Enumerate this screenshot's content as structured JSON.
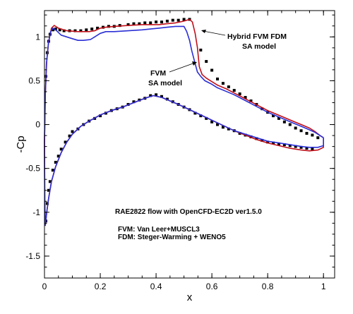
{
  "chart_data": {
    "type": "line",
    "xlabel": "x",
    "ylabel": "-Cp",
    "xlim": [
      0,
      1.04
    ],
    "ylim": [
      -1.75,
      1.3
    ],
    "x_ticks": [
      0,
      0.2,
      0.4,
      0.6,
      0.8,
      1
    ],
    "x_tick_labels": [
      "0",
      "0.2",
      "0.4",
      "0.6",
      "0.8",
      "1"
    ],
    "y_ticks": [
      -1.5,
      -1,
      -0.5,
      0,
      0.5,
      1
    ],
    "y_tick_labels": [
      "-1.5",
      "-1",
      "-0.5",
      "0",
      "0.5",
      "1"
    ],
    "grid": false,
    "legend": "none",
    "annotations": [
      {
        "id": "hybrid",
        "lines": [
          "Hybrid FVM FDM",
          "SA model"
        ]
      },
      {
        "id": "fvm",
        "lines": [
          "FVM",
          "SA model"
        ]
      },
      {
        "id": "info",
        "lines": [
          "RAE2822 flow with OpenCFD-EC2D ver1.5.0",
          "",
          "FVM: Van Leer+MUSCL3",
          "FDM: Steger-Warming + WENO5"
        ]
      }
    ],
    "series": [
      {
        "id": "experiment",
        "style": "markers",
        "color": "#000000",
        "upper": [
          [
            0.005,
            0.55
          ],
          [
            0.01,
            0.82
          ],
          [
            0.015,
            0.95
          ],
          [
            0.02,
            1.03
          ],
          [
            0.03,
            1.08
          ],
          [
            0.04,
            1.09
          ],
          [
            0.055,
            1.08
          ],
          [
            0.07,
            1.07
          ],
          [
            0.09,
            1.07
          ],
          [
            0.11,
            1.07
          ],
          [
            0.13,
            1.07
          ],
          [
            0.15,
            1.08
          ],
          [
            0.17,
            1.09
          ],
          [
            0.19,
            1.1
          ],
          [
            0.21,
            1.11
          ],
          [
            0.23,
            1.12
          ],
          [
            0.25,
            1.12
          ],
          [
            0.27,
            1.13
          ],
          [
            0.3,
            1.14
          ],
          [
            0.32,
            1.15
          ],
          [
            0.34,
            1.15
          ],
          [
            0.36,
            1.16
          ],
          [
            0.38,
            1.16
          ],
          [
            0.4,
            1.17
          ],
          [
            0.42,
            1.17
          ],
          [
            0.44,
            1.18
          ],
          [
            0.46,
            1.19
          ],
          [
            0.48,
            1.19
          ],
          [
            0.5,
            1.2
          ],
          [
            0.52,
            1.2
          ],
          [
            0.56,
            0.85
          ],
          [
            0.58,
            0.72
          ],
          [
            0.6,
            0.62
          ],
          [
            0.62,
            0.52
          ],
          [
            0.64,
            0.47
          ],
          [
            0.66,
            0.43
          ],
          [
            0.68,
            0.39
          ],
          [
            0.7,
            0.35
          ],
          [
            0.72,
            0.31
          ],
          [
            0.74,
            0.27
          ],
          [
            0.76,
            0.23
          ],
          [
            0.78,
            0.18
          ],
          [
            0.8,
            0.14
          ],
          [
            0.82,
            0.1
          ],
          [
            0.84,
            0.07
          ],
          [
            0.86,
            0.03
          ],
          [
            0.88,
            0.0
          ],
          [
            0.9,
            -0.04
          ],
          [
            0.92,
            -0.07
          ],
          [
            0.94,
            -0.1
          ],
          [
            0.96,
            -0.12
          ],
          [
            0.98,
            -0.15
          ]
        ],
        "lower": [
          [
            0.005,
            -1.1
          ],
          [
            0.01,
            -0.9
          ],
          [
            0.015,
            -0.75
          ],
          [
            0.02,
            -0.65
          ],
          [
            0.03,
            -0.52
          ],
          [
            0.04,
            -0.43
          ],
          [
            0.05,
            -0.36
          ],
          [
            0.06,
            -0.28
          ],
          [
            0.075,
            -0.2
          ],
          [
            0.09,
            -0.13
          ],
          [
            0.1,
            -0.08
          ],
          [
            0.12,
            -0.05
          ],
          [
            0.14,
            0.0
          ],
          [
            0.16,
            0.04
          ],
          [
            0.18,
            0.07
          ],
          [
            0.2,
            0.1
          ],
          [
            0.22,
            0.13
          ],
          [
            0.24,
            0.16
          ],
          [
            0.26,
            0.18
          ],
          [
            0.28,
            0.2
          ],
          [
            0.3,
            0.23
          ],
          [
            0.32,
            0.26
          ],
          [
            0.34,
            0.28
          ],
          [
            0.36,
            0.3
          ],
          [
            0.38,
            0.33
          ],
          [
            0.4,
            0.34
          ],
          [
            0.42,
            0.32
          ],
          [
            0.44,
            0.29
          ],
          [
            0.46,
            0.26
          ],
          [
            0.48,
            0.23
          ],
          [
            0.5,
            0.2
          ],
          [
            0.52,
            0.17
          ],
          [
            0.54,
            0.13
          ],
          [
            0.56,
            0.1
          ],
          [
            0.58,
            0.07
          ],
          [
            0.6,
            0.03
          ],
          [
            0.62,
            0.0
          ],
          [
            0.64,
            -0.03
          ],
          [
            0.66,
            -0.05
          ],
          [
            0.68,
            -0.07
          ],
          [
            0.7,
            -0.1
          ],
          [
            0.72,
            -0.12
          ],
          [
            0.74,
            -0.14
          ],
          [
            0.76,
            -0.16
          ],
          [
            0.78,
            -0.18
          ],
          [
            0.8,
            -0.2
          ],
          [
            0.82,
            -0.21
          ],
          [
            0.84,
            -0.22
          ],
          [
            0.86,
            -0.23
          ],
          [
            0.88,
            -0.24
          ],
          [
            0.9,
            -0.25
          ],
          [
            0.92,
            -0.26
          ],
          [
            0.94,
            -0.27
          ],
          [
            0.96,
            -0.28
          ]
        ]
      },
      {
        "id": "hybrid-fvm-fdm",
        "style": "line",
        "color": "#c0101a",
        "points": [
          [
            1.0,
            -0.15
          ],
          [
            0.99,
            -0.13
          ],
          [
            0.97,
            -0.08
          ],
          [
            0.95,
            -0.04
          ],
          [
            0.92,
            0.0
          ],
          [
            0.89,
            0.04
          ],
          [
            0.86,
            0.08
          ],
          [
            0.83,
            0.12
          ],
          [
            0.8,
            0.16
          ],
          [
            0.77,
            0.21
          ],
          [
            0.74,
            0.26
          ],
          [
            0.71,
            0.31
          ],
          [
            0.68,
            0.36
          ],
          [
            0.65,
            0.41
          ],
          [
            0.62,
            0.45
          ],
          [
            0.6,
            0.49
          ],
          [
            0.58,
            0.53
          ],
          [
            0.565,
            0.57
          ],
          [
            0.555,
            0.66
          ],
          [
            0.548,
            0.88
          ],
          [
            0.54,
            1.04
          ],
          [
            0.53,
            1.17
          ],
          [
            0.52,
            1.2
          ],
          [
            0.5,
            1.18
          ],
          [
            0.47,
            1.16
          ],
          [
            0.44,
            1.15
          ],
          [
            0.41,
            1.14
          ],
          [
            0.38,
            1.14
          ],
          [
            0.35,
            1.14
          ],
          [
            0.3,
            1.13
          ],
          [
            0.25,
            1.12
          ],
          [
            0.22,
            1.11
          ],
          [
            0.2,
            1.1
          ],
          [
            0.18,
            1.07
          ],
          [
            0.16,
            1.06
          ],
          [
            0.12,
            1.06
          ],
          [
            0.08,
            1.07
          ],
          [
            0.05,
            1.1
          ],
          [
            0.035,
            1.13
          ],
          [
            0.025,
            1.1
          ],
          [
            0.015,
            0.95
          ],
          [
            0.008,
            0.72
          ],
          [
            0.003,
            0.35
          ],
          [
            0.0,
            -0.2
          ],
          [
            0.001,
            -0.85
          ],
          [
            0.003,
            -1.15
          ],
          [
            0.008,
            -1.0
          ],
          [
            0.015,
            -0.84
          ],
          [
            0.025,
            -0.65
          ],
          [
            0.04,
            -0.48
          ],
          [
            0.06,
            -0.32
          ],
          [
            0.08,
            -0.2
          ],
          [
            0.1,
            -0.11
          ],
          [
            0.13,
            -0.02
          ],
          [
            0.16,
            0.04
          ],
          [
            0.2,
            0.11
          ],
          [
            0.24,
            0.16
          ],
          [
            0.28,
            0.2
          ],
          [
            0.32,
            0.25
          ],
          [
            0.36,
            0.3
          ],
          [
            0.39,
            0.33
          ],
          [
            0.42,
            0.31
          ],
          [
            0.45,
            0.27
          ],
          [
            0.48,
            0.23
          ],
          [
            0.52,
            0.17
          ],
          [
            0.56,
            0.11
          ],
          [
            0.6,
            0.05
          ],
          [
            0.64,
            -0.01
          ],
          [
            0.68,
            -0.07
          ],
          [
            0.72,
            -0.12
          ],
          [
            0.76,
            -0.17
          ],
          [
            0.8,
            -0.21
          ],
          [
            0.84,
            -0.24
          ],
          [
            0.88,
            -0.27
          ],
          [
            0.92,
            -0.29
          ],
          [
            0.95,
            -0.3
          ],
          [
            0.98,
            -0.29
          ],
          [
            1.0,
            -0.26
          ],
          [
            1.0,
            -0.15
          ]
        ]
      },
      {
        "id": "fvm",
        "style": "line",
        "color": "#2a2fd4",
        "points": [
          [
            1.0,
            -0.15
          ],
          [
            0.99,
            -0.13
          ],
          [
            0.97,
            -0.09
          ],
          [
            0.95,
            -0.06
          ],
          [
            0.92,
            -0.02
          ],
          [
            0.89,
            0.02
          ],
          [
            0.86,
            0.06
          ],
          [
            0.83,
            0.1
          ],
          [
            0.8,
            0.14
          ],
          [
            0.77,
            0.19
          ],
          [
            0.74,
            0.24
          ],
          [
            0.71,
            0.29
          ],
          [
            0.68,
            0.34
          ],
          [
            0.65,
            0.38
          ],
          [
            0.62,
            0.42
          ],
          [
            0.6,
            0.46
          ],
          [
            0.575,
            0.5
          ],
          [
            0.56,
            0.55
          ],
          [
            0.548,
            0.6
          ],
          [
            0.538,
            0.72
          ],
          [
            0.528,
            0.84
          ],
          [
            0.52,
            0.96
          ],
          [
            0.51,
            1.06
          ],
          [
            0.5,
            1.12
          ],
          [
            0.47,
            1.12
          ],
          [
            0.44,
            1.11
          ],
          [
            0.41,
            1.1
          ],
          [
            0.38,
            1.09
          ],
          [
            0.35,
            1.08
          ],
          [
            0.3,
            1.07
          ],
          [
            0.25,
            1.06
          ],
          [
            0.22,
            1.06
          ],
          [
            0.2,
            1.04
          ],
          [
            0.18,
            1.0
          ],
          [
            0.165,
            0.97
          ],
          [
            0.14,
            0.96
          ],
          [
            0.12,
            0.96
          ],
          [
            0.1,
            0.98
          ],
          [
            0.08,
            1.0
          ],
          [
            0.06,
            1.02
          ],
          [
            0.04,
            1.08
          ],
          [
            0.03,
            1.1
          ],
          [
            0.022,
            1.06
          ],
          [
            0.014,
            0.92
          ],
          [
            0.007,
            0.7
          ],
          [
            0.003,
            0.35
          ],
          [
            0.0,
            -0.2
          ],
          [
            0.001,
            -0.85
          ],
          [
            0.003,
            -1.15
          ],
          [
            0.008,
            -1.0
          ],
          [
            0.015,
            -0.84
          ],
          [
            0.025,
            -0.65
          ],
          [
            0.04,
            -0.48
          ],
          [
            0.06,
            -0.32
          ],
          [
            0.08,
            -0.2
          ],
          [
            0.1,
            -0.11
          ],
          [
            0.13,
            -0.02
          ],
          [
            0.16,
            0.04
          ],
          [
            0.2,
            0.11
          ],
          [
            0.24,
            0.16
          ],
          [
            0.28,
            0.2
          ],
          [
            0.32,
            0.25
          ],
          [
            0.36,
            0.3
          ],
          [
            0.39,
            0.33
          ],
          [
            0.42,
            0.31
          ],
          [
            0.45,
            0.27
          ],
          [
            0.48,
            0.23
          ],
          [
            0.52,
            0.17
          ],
          [
            0.56,
            0.11
          ],
          [
            0.6,
            0.05
          ],
          [
            0.64,
            -0.01
          ],
          [
            0.68,
            -0.07
          ],
          [
            0.72,
            -0.11
          ],
          [
            0.76,
            -0.15
          ],
          [
            0.8,
            -0.19
          ],
          [
            0.84,
            -0.21
          ],
          [
            0.88,
            -0.23
          ],
          [
            0.92,
            -0.25
          ],
          [
            0.95,
            -0.26
          ],
          [
            0.98,
            -0.26
          ],
          [
            1.0,
            -0.24
          ],
          [
            1.0,
            -0.15
          ]
        ]
      }
    ]
  }
}
